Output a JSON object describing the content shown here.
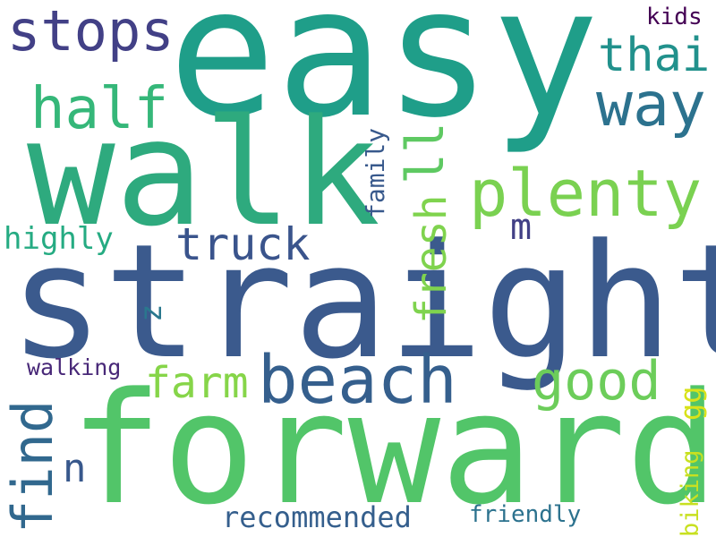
{
  "words": [
    {
      "text": "easy",
      "color": "#1f9e89"
    },
    {
      "text": "straight",
      "color": "#3b5a8d"
    },
    {
      "text": "forward",
      "color": "#52c569"
    },
    {
      "text": "walk",
      "color": "#2eaa7e"
    },
    {
      "text": "beach",
      "color": "#355f8d"
    },
    {
      "text": "plenty",
      "color": "#7ad151"
    },
    {
      "text": "stops",
      "color": "#424086"
    },
    {
      "text": "way",
      "color": "#2c728e"
    },
    {
      "text": "half",
      "color": "#35b779"
    },
    {
      "text": "thai",
      "color": "#21918c"
    },
    {
      "text": "truck",
      "color": "#3a548c"
    },
    {
      "text": "good",
      "color": "#6ccd5a"
    },
    {
      "text": "find",
      "color": "#31688e"
    },
    {
      "text": "farm",
      "color": "#86d549"
    },
    {
      "text": "fresh",
      "color": "#7fd34e"
    },
    {
      "text": "ll",
      "color": "#5ec962"
    },
    {
      "text": "m",
      "color": "#424086"
    },
    {
      "text": "n",
      "color": "#38588c"
    },
    {
      "text": "z",
      "color": "#2a788e"
    },
    {
      "text": "highly",
      "color": "#25ab82"
    },
    {
      "text": "walking",
      "color": "#482878"
    },
    {
      "text": "recommended",
      "color": "#355f8d"
    },
    {
      "text": "friendly",
      "color": "#2c728e"
    },
    {
      "text": "biking",
      "color": "#c8e020"
    },
    {
      "text": "gg",
      "color": "#d8e219"
    },
    {
      "text": "family",
      "color": "#38598c"
    },
    {
      "text": "kids",
      "color": "#440154"
    }
  ]
}
